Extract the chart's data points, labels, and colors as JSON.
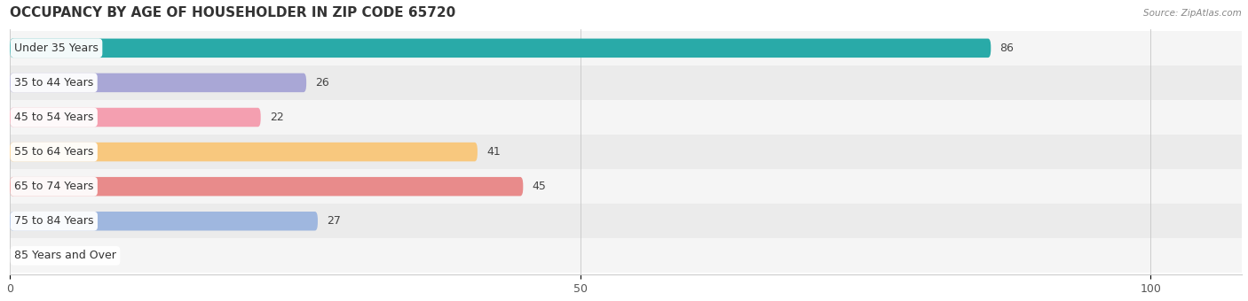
{
  "title": "OCCUPANCY BY AGE OF HOUSEHOLDER IN ZIP CODE 65720",
  "source": "Source: ZipAtlas.com",
  "categories": [
    "Under 35 Years",
    "35 to 44 Years",
    "45 to 54 Years",
    "55 to 64 Years",
    "65 to 74 Years",
    "75 to 84 Years",
    "85 Years and Over"
  ],
  "values": [
    86,
    26,
    22,
    41,
    45,
    27,
    0
  ],
  "bar_colors": [
    "#29aaa8",
    "#a9a7d6",
    "#f49fb0",
    "#f8c87e",
    "#e88b8b",
    "#9fb7df",
    "#c8a8d8"
  ],
  "xlim": [
    0,
    108
  ],
  "xlim_display": 100,
  "xticks": [
    0,
    50,
    100
  ],
  "bar_height": 0.55,
  "bg_even": "#f5f5f5",
  "bg_odd": "#ebebeb",
  "title_fontsize": 11,
  "label_fontsize": 9,
  "value_fontsize": 9
}
